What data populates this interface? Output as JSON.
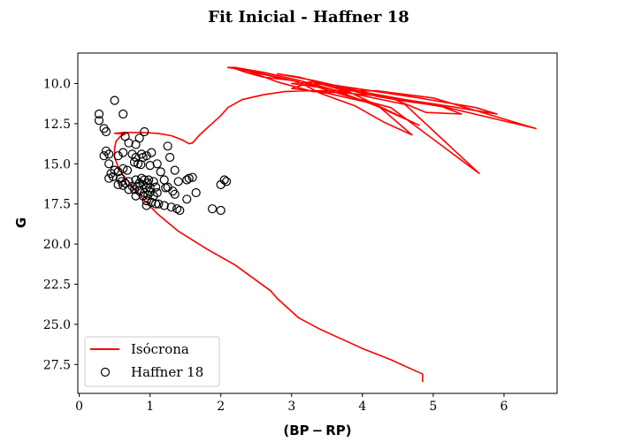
{
  "chart_data": {
    "type": "scatter",
    "title": "Fit Inicial - Haffner 18",
    "xlabel": "(BP − RP)",
    "ylabel": "G",
    "xlim": [
      -0.02,
      6.75
    ],
    "ylim": [
      29.3,
      8.1
    ],
    "y_inverted": true,
    "grid": false,
    "x_ticks": [
      0,
      1,
      2,
      3,
      4,
      5,
      6
    ],
    "y_ticks": [
      10.0,
      12.5,
      15.0,
      17.5,
      20.0,
      22.5,
      25.0,
      27.5
    ],
    "x_tick_labels": [
      "0",
      "1",
      "2",
      "3",
      "4",
      "5",
      "6"
    ],
    "y_tick_labels": [
      "10.0",
      "12.5",
      "15.0",
      "17.5",
      "20.0",
      "22.5",
      "25.0",
      "27.5"
    ],
    "legend": {
      "position": "lower-left",
      "entries": [
        "Isócrona",
        "Haffner 18"
      ]
    },
    "series": [
      {
        "name": "Isócrona",
        "kind": "line",
        "color": "#ff0000",
        "points": [
          [
            4.85,
            28.6
          ],
          [
            4.85,
            28.1
          ],
          [
            4.7,
            27.8
          ],
          [
            4.4,
            27.2
          ],
          [
            4.0,
            26.5
          ],
          [
            3.4,
            25.3
          ],
          [
            3.1,
            24.6
          ],
          [
            2.8,
            23.4
          ],
          [
            2.7,
            22.9
          ],
          [
            2.2,
            21.3
          ],
          [
            1.8,
            20.3
          ],
          [
            1.4,
            19.2
          ],
          [
            1.1,
            18.1
          ],
          [
            0.9,
            17.2
          ],
          [
            0.75,
            16.4
          ],
          [
            0.62,
            15.7
          ],
          [
            0.55,
            15.2
          ],
          [
            0.5,
            14.6
          ],
          [
            0.5,
            14.0
          ],
          [
            0.52,
            13.6
          ],
          [
            0.58,
            13.3
          ],
          [
            0.65,
            13.15
          ],
          [
            0.5,
            13.1
          ],
          [
            0.62,
            13.05
          ],
          [
            0.9,
            13.05
          ],
          [
            1.1,
            13.1
          ],
          [
            1.3,
            13.25
          ],
          [
            1.45,
            13.5
          ],
          [
            1.55,
            13.75
          ],
          [
            1.6,
            13.7
          ],
          [
            1.7,
            13.2
          ],
          [
            1.85,
            12.6
          ],
          [
            2.0,
            12.0
          ],
          [
            2.1,
            11.5
          ],
          [
            2.3,
            11.0
          ],
          [
            2.6,
            10.7
          ],
          [
            2.9,
            10.5
          ],
          [
            3.2,
            10.45
          ],
          [
            3.5,
            10.45
          ],
          [
            4.2,
            10.45
          ],
          [
            5.0,
            10.9
          ],
          [
            6.45,
            12.8
          ],
          [
            5.2,
            11.5
          ],
          [
            4.8,
            11.2
          ],
          [
            4.3,
            10.8
          ],
          [
            3.8,
            10.6
          ],
          [
            3.3,
            10.5
          ],
          [
            2.8,
            9.9
          ],
          [
            2.5,
            9.4
          ],
          [
            2.3,
            9.1
          ],
          [
            2.15,
            9.0
          ],
          [
            2.35,
            9.3
          ],
          [
            2.6,
            9.6
          ],
          [
            3.0,
            9.8
          ],
          [
            2.4,
            9.2
          ],
          [
            2.1,
            9.0
          ],
          [
            2.2,
            9.0
          ],
          [
            2.6,
            9.3
          ],
          [
            3.1,
            9.8
          ],
          [
            3.6,
            10.4
          ],
          [
            4.2,
            11.4
          ],
          [
            4.8,
            12.6
          ],
          [
            3.8,
            10.5
          ],
          [
            3.3,
            9.9
          ],
          [
            3.0,
            10.0
          ],
          [
            3.5,
            10.3
          ],
          [
            4.6,
            11.3
          ],
          [
            5.65,
            15.6
          ],
          [
            4.4,
            11.5
          ],
          [
            3.8,
            10.8
          ],
          [
            3.2,
            10.0
          ],
          [
            3.6,
            10.1
          ],
          [
            4.2,
            10.5
          ],
          [
            4.8,
            10.9
          ],
          [
            5.6,
            11.5
          ],
          [
            5.9,
            11.9
          ],
          [
            5.2,
            11.4
          ],
          [
            4.6,
            11.0
          ],
          [
            4.1,
            10.6
          ],
          [
            3.6,
            10.2
          ],
          [
            3.1,
            9.6
          ],
          [
            2.8,
            9.4
          ],
          [
            3.3,
            9.8
          ],
          [
            3.8,
            10.3
          ],
          [
            4.4,
            10.9
          ],
          [
            4.9,
            11.8
          ],
          [
            5.4,
            11.9
          ],
          [
            5.1,
            11.4
          ],
          [
            4.6,
            11.1
          ],
          [
            4.2,
            10.8
          ],
          [
            3.7,
            10.3
          ],
          [
            3.3,
            9.9
          ],
          [
            3.0,
            10.3
          ],
          [
            3.5,
            10.6
          ],
          [
            4.2,
            11.3
          ],
          [
            4.7,
            13.2
          ],
          [
            4.3,
            12.4
          ],
          [
            3.9,
            11.4
          ],
          [
            3.4,
            10.6
          ],
          [
            3.1,
            9.9
          ],
          [
            2.2,
            9.05
          ]
        ]
      },
      {
        "name": "Haffner 18",
        "kind": "scatter",
        "marker": "open-circle",
        "color": "#000000",
        "points": [
          [
            0.5,
            11.05
          ],
          [
            0.28,
            11.9
          ],
          [
            0.62,
            11.9
          ],
          [
            0.28,
            12.3
          ],
          [
            0.35,
            12.8
          ],
          [
            0.38,
            13.0
          ],
          [
            0.92,
            13.0
          ],
          [
            0.65,
            13.3
          ],
          [
            0.85,
            13.4
          ],
          [
            0.7,
            13.7
          ],
          [
            0.8,
            13.8
          ],
          [
            1.25,
            13.9
          ],
          [
            0.38,
            14.2
          ],
          [
            0.62,
            14.3
          ],
          [
            1.02,
            14.3
          ],
          [
            0.42,
            14.4
          ],
          [
            0.35,
            14.5
          ],
          [
            0.75,
            14.4
          ],
          [
            0.88,
            14.4
          ],
          [
            0.95,
            14.5
          ],
          [
            1.28,
            14.6
          ],
          [
            0.55,
            14.5
          ],
          [
            0.8,
            14.6
          ],
          [
            0.9,
            14.6
          ],
          [
            0.78,
            14.9
          ],
          [
            0.83,
            15.0
          ],
          [
            0.87,
            15.05
          ],
          [
            1.1,
            15.0
          ],
          [
            0.42,
            15.0
          ],
          [
            1.0,
            15.1
          ],
          [
            0.62,
            15.3
          ],
          [
            0.68,
            15.4
          ],
          [
            0.5,
            15.4
          ],
          [
            0.55,
            15.5
          ],
          [
            0.45,
            15.6
          ],
          [
            1.35,
            15.4
          ],
          [
            0.42,
            15.9
          ],
          [
            0.48,
            15.8
          ],
          [
            0.58,
            15.9
          ],
          [
            0.88,
            15.9
          ],
          [
            0.92,
            16.0
          ],
          [
            0.98,
            16.0
          ],
          [
            1.15,
            15.5
          ],
          [
            1.55,
            15.9
          ],
          [
            1.6,
            15.85
          ],
          [
            1.52,
            16.0
          ],
          [
            0.6,
            16.1
          ],
          [
            0.65,
            16.2
          ],
          [
            0.7,
            16.1
          ],
          [
            0.8,
            16.0
          ],
          [
            0.85,
            16.2
          ],
          [
            0.9,
            16.3
          ],
          [
            0.97,
            16.2
          ],
          [
            1.05,
            16.1
          ],
          [
            1.2,
            16.0
          ],
          [
            1.4,
            16.1
          ],
          [
            0.55,
            16.3
          ],
          [
            0.62,
            16.35
          ],
          [
            0.75,
            16.4
          ],
          [
            0.82,
            16.4
          ],
          [
            0.95,
            16.5
          ],
          [
            1.0,
            16.5
          ],
          [
            1.08,
            16.45
          ],
          [
            1.22,
            16.5
          ],
          [
            1.25,
            16.45
          ],
          [
            2.05,
            16.0
          ],
          [
            2.08,
            16.1
          ],
          [
            2.0,
            16.3
          ],
          [
            0.7,
            16.6
          ],
          [
            0.78,
            16.6
          ],
          [
            0.85,
            16.7
          ],
          [
            0.92,
            16.8
          ],
          [
            1.0,
            16.75
          ],
          [
            1.1,
            16.8
          ],
          [
            1.32,
            16.7
          ],
          [
            1.65,
            16.8
          ],
          [
            0.8,
            17.0
          ],
          [
            0.9,
            17.0
          ],
          [
            0.97,
            16.95
          ],
          [
            1.05,
            17.0
          ],
          [
            1.35,
            16.9
          ],
          [
            1.52,
            17.2
          ],
          [
            0.95,
            17.3
          ],
          [
            1.02,
            17.4
          ],
          [
            1.08,
            17.5
          ],
          [
            0.95,
            17.6
          ],
          [
            1.12,
            17.5
          ],
          [
            1.2,
            17.6
          ],
          [
            1.3,
            17.7
          ],
          [
            1.38,
            17.8
          ],
          [
            1.42,
            17.9
          ],
          [
            1.88,
            17.8
          ],
          [
            2.0,
            17.9
          ]
        ]
      }
    ]
  }
}
